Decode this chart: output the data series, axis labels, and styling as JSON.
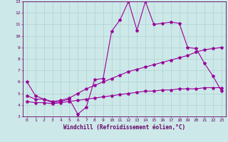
{
  "xlabel": "Windchill (Refroidissement éolien,°C)",
  "ylabel": "",
  "background_color": "#cce8e8",
  "line_color": "#990099",
  "xlim": [
    -0.5,
    23.5
  ],
  "ylim": [
    3,
    13
  ],
  "yticks": [
    3,
    4,
    5,
    6,
    7,
    8,
    9,
    10,
    11,
    12,
    13
  ],
  "xticks": [
    0,
    1,
    2,
    3,
    4,
    5,
    6,
    7,
    8,
    9,
    10,
    11,
    12,
    13,
    14,
    15,
    16,
    17,
    18,
    19,
    20,
    21,
    22,
    23
  ],
  "series1_x": [
    0,
    1,
    2,
    3,
    4,
    5,
    6,
    7,
    8,
    9,
    10,
    11,
    12,
    13,
    14,
    15,
    16,
    17,
    18,
    19,
    20,
    21,
    22,
    23
  ],
  "series1_y": [
    6.0,
    4.8,
    4.5,
    4.2,
    4.3,
    4.5,
    3.2,
    3.8,
    6.2,
    6.3,
    10.4,
    11.4,
    13.0,
    10.5,
    13.0,
    11.0,
    11.1,
    11.2,
    11.1,
    9.0,
    8.9,
    7.6,
    6.5,
    5.2
  ],
  "series2_x": [
    0,
    1,
    2,
    3,
    4,
    5,
    6,
    7,
    8,
    9,
    10,
    11,
    12,
    13,
    14,
    15,
    16,
    17,
    18,
    19,
    20,
    21,
    22,
    23
  ],
  "series2_y": [
    4.8,
    4.5,
    4.5,
    4.3,
    4.4,
    4.6,
    5.0,
    5.4,
    5.7,
    6.0,
    6.3,
    6.6,
    6.9,
    7.1,
    7.3,
    7.5,
    7.7,
    7.9,
    8.1,
    8.3,
    8.6,
    8.8,
    8.9,
    9.0
  ],
  "series3_x": [
    0,
    1,
    2,
    3,
    4,
    5,
    6,
    7,
    8,
    9,
    10,
    11,
    12,
    13,
    14,
    15,
    16,
    17,
    18,
    19,
    20,
    21,
    22,
    23
  ],
  "series3_y": [
    4.3,
    4.2,
    4.2,
    4.1,
    4.2,
    4.3,
    4.4,
    4.5,
    4.6,
    4.7,
    4.8,
    4.9,
    5.0,
    5.1,
    5.2,
    5.2,
    5.3,
    5.3,
    5.4,
    5.4,
    5.4,
    5.5,
    5.5,
    5.5
  ],
  "marker": "*",
  "markersize": 3,
  "linewidth": 0.8,
  "tick_fontsize": 4.5,
  "label_fontsize": 5.5,
  "grid_color": "#aacccc",
  "axis_color": "#660066",
  "grid_linewidth": 0.4
}
